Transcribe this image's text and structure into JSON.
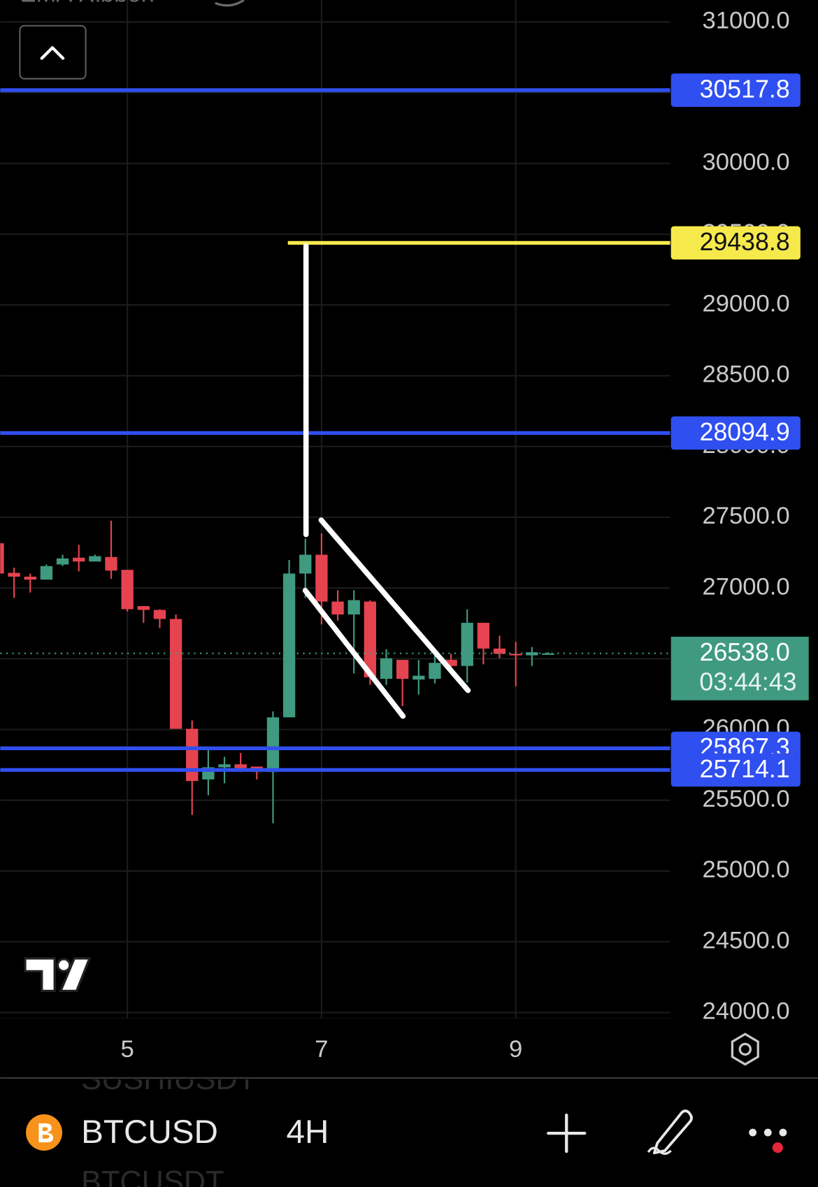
{
  "indicator": "EMA Ribbon",
  "chart_data": {
    "type": "candlestick",
    "categories": [
      null,
      null,
      null,
      null,
      null,
      null,
      null,
      null,
      "5",
      null,
      null,
      null,
      null,
      null,
      null,
      null,
      null,
      null,
      null,
      null,
      "7",
      null,
      null,
      null,
      null,
      null,
      null,
      null,
      null,
      null,
      null,
      null,
      "9",
      null,
      null
    ],
    "open": [
      27316,
      27107,
      27080,
      27059,
      27166,
      27214,
      27187,
      27219,
      27128,
      26872,
      26845,
      26781,
      26005,
      25647,
      25733,
      25754,
      25738,
      25700,
      26086,
      27102,
      27235,
      26904,
      26813,
      26904,
      26358,
      26492,
      26353,
      26358,
      26492,
      26449,
      26754,
      26572,
      26535,
      26524,
      26530
    ],
    "high": [
      27316,
      27144,
      27102,
      27166,
      27235,
      27305,
      27235,
      27476,
      27128,
      26872,
      26850,
      26813,
      26064,
      25872,
      25807,
      25834,
      25738,
      26128,
      27198,
      27348,
      27385,
      26984,
      26984,
      26914,
      26567,
      26492,
      26492,
      26546,
      26535,
      26850,
      26754,
      26663,
      26620,
      26583,
      26546
    ],
    "low": [
      27102,
      26930,
      26968,
      27059,
      27155,
      27118,
      27187,
      27064,
      26834,
      26754,
      26717,
      26005,
      25396,
      25535,
      25620,
      25700,
      25647,
      25337,
      26086,
      26930,
      26743,
      26770,
      26396,
      26315,
      26315,
      26166,
      26246,
      26326,
      26412,
      26332,
      26460,
      26503,
      26305,
      26449,
      26530
    ],
    "close": [
      27102,
      27080,
      27059,
      27155,
      27209,
      27187,
      27225,
      27123,
      26850,
      26845,
      26781,
      26005,
      25636,
      25733,
      25754,
      25727,
      25700,
      26086,
      27102,
      27235,
      26904,
      26813,
      26914,
      26369,
      26503,
      26358,
      26380,
      26471,
      26449,
      26754,
      26572,
      26535,
      26524,
      26546,
      26538
    ],
    "up_color": "#3f9a80",
    "down_color": "#e5434f",
    "ylim": [
      23960,
      31155
    ],
    "yticks": [
      {
        "value": 24000,
        "label": "24000.0"
      },
      {
        "value": 24500,
        "label": "24500.0"
      },
      {
        "value": 25000,
        "label": "25000.0"
      },
      {
        "value": 25500,
        "label": "25500.0"
      },
      {
        "value": 26000,
        "label": "26000.0"
      },
      {
        "value": 26500,
        "label": "26500.0"
      },
      {
        "value": 27000,
        "label": "27000.0"
      },
      {
        "value": 27500,
        "label": "27500.0"
      },
      {
        "value": 28000,
        "label": "28000.0"
      },
      {
        "value": 28500,
        "label": "28500.0"
      },
      {
        "value": 29000,
        "label": "29000.0"
      },
      {
        "value": 29500,
        "label": "29500.0"
      },
      {
        "value": 30000,
        "label": "30000.0"
      },
      {
        "value": 30500,
        "label": "30500.0"
      },
      {
        "value": 31000,
        "label": "31000.0"
      }
    ],
    "grid": true,
    "price_lines": [
      {
        "value": 30517.8,
        "color": "#2f4ff0"
      },
      {
        "value": 28094.9,
        "color": "#2f4ff0"
      },
      {
        "value": 25867.3,
        "color": "#2f4ff0"
      },
      {
        "value": 25714.1,
        "color": "#2f4ff0"
      }
    ],
    "target_line": {
      "value": 29438.8,
      "color": "#f6e94c"
    },
    "last_price": {
      "value": 26538,
      "label": "26538.0"
    },
    "countdown": "03:44:43"
  },
  "toolbar": {
    "symbol": "BTCUSD",
    "interval": "4H",
    "watchlist": [
      "SUSHIUSDT",
      "BTCUSDT"
    ]
  }
}
